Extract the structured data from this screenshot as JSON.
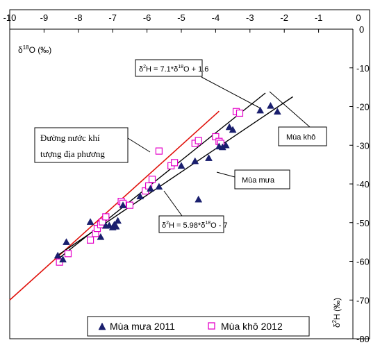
{
  "chart_data": {
    "type": "scatter",
    "x_axis": {
      "label_main": "δ",
      "label_sup": "18",
      "label_rest": "O (‰)",
      "ticks": [
        -10,
        -9,
        -8,
        -7,
        -6,
        -5,
        -4,
        -3,
        -2,
        -1,
        0
      ],
      "range": [
        -10,
        0
      ],
      "position": "top"
    },
    "y_axis": {
      "label_main": "δ",
      "label_sup": "2",
      "label_rest": "H (‰)",
      "ticks": [
        0,
        -10,
        -20,
        -30,
        -40,
        -50,
        -60,
        -70,
        -80
      ],
      "range": [
        -80,
        0
      ],
      "position": "right"
    },
    "series": [
      {
        "name": "Mùa mưa 2011",
        "marker": "filled-triangle",
        "color": "#1a1f6e",
        "points": [
          [
            -8.6,
            -58.5
          ],
          [
            -8.45,
            -59.5
          ],
          [
            -8.35,
            -55.0
          ],
          [
            -7.65,
            -49.8
          ],
          [
            -7.35,
            -53.7
          ],
          [
            -7.2,
            -50.8
          ],
          [
            -7.1,
            -50.7
          ],
          [
            -7.0,
            -51.2
          ],
          [
            -6.95,
            -50.5
          ],
          [
            -6.9,
            -51.0
          ],
          [
            -6.85,
            -49.5
          ],
          [
            -6.7,
            -45.5
          ],
          [
            -6.2,
            -43.2
          ],
          [
            -5.9,
            -41.2
          ],
          [
            -5.65,
            -40.7
          ],
          [
            -5.0,
            -35.3
          ],
          [
            -4.6,
            -34.1
          ],
          [
            -4.5,
            -44.0
          ],
          [
            -4.2,
            -33.3
          ],
          [
            -3.9,
            -30.3
          ],
          [
            -3.8,
            -30.5
          ],
          [
            -3.7,
            -30.0
          ],
          [
            -3.6,
            -25.3
          ],
          [
            -3.5,
            -26.0
          ],
          [
            -2.7,
            -21.0
          ],
          [
            -2.4,
            -19.8
          ],
          [
            -2.2,
            -21.3
          ]
        ]
      },
      {
        "name": "Mùa khô 2012",
        "marker": "open-square",
        "color": "#e400c8",
        "points": [
          [
            -8.55,
            -60.2
          ],
          [
            -8.3,
            -58.0
          ],
          [
            -7.65,
            -54.5
          ],
          [
            -7.5,
            -52.8
          ],
          [
            -7.45,
            -51.5
          ],
          [
            -7.35,
            -50.5
          ],
          [
            -7.3,
            -49.8
          ],
          [
            -7.2,
            -48.5
          ],
          [
            -6.75,
            -44.5
          ],
          [
            -6.7,
            -45.0
          ],
          [
            -6.5,
            -45.5
          ],
          [
            -6.05,
            -41.8
          ],
          [
            -5.95,
            -40.5
          ],
          [
            -5.85,
            -38.8
          ],
          [
            -5.65,
            -31.5
          ],
          [
            -5.3,
            -35.3
          ],
          [
            -5.2,
            -34.5
          ],
          [
            -4.6,
            -29.5
          ],
          [
            -4.5,
            -28.8
          ],
          [
            -4.0,
            -27.8
          ],
          [
            -3.9,
            -29.0
          ],
          [
            -3.85,
            -29.5
          ],
          [
            -3.4,
            -21.3
          ],
          [
            -3.3,
            -21.7
          ]
        ]
      }
    ],
    "lines": [
      {
        "label": "Đường nước khí tượng địa phương",
        "color": "#e0100a",
        "slope": 8.0,
        "intercept": 10.0,
        "x_from": -10.0,
        "x_to": -3.9
      },
      {
        "label": "Mùa khô",
        "color": "#000000",
        "slope": 7.1,
        "intercept": 1.6,
        "x_from": -8.6,
        "x_to": -2.55
      },
      {
        "label": "Mùa mưa",
        "color": "#000000",
        "slope": 5.98,
        "intercept": -7.0,
        "x_from": -8.6,
        "x_to": -1.75
      }
    ],
    "annotations": {
      "eq_kho": {
        "prefix": "δ",
        "sup1": "2",
        "mid": "H = 7.1*δ",
        "sup2": "18",
        "suffix": "O + 1.6"
      },
      "eq_mua": {
        "prefix": "δ",
        "sup1": "2",
        "mid": "H = 5.98*δ",
        "sup2": "18",
        "suffix": "O - 7"
      },
      "lmwl_line1": "Đường nước khí",
      "lmwl_line2": "tượng địa phương",
      "label_kho": "Mùa khô",
      "label_mua": "Mùa mưa"
    },
    "legend": {
      "placement": "bottom"
    },
    "grid": false
  }
}
